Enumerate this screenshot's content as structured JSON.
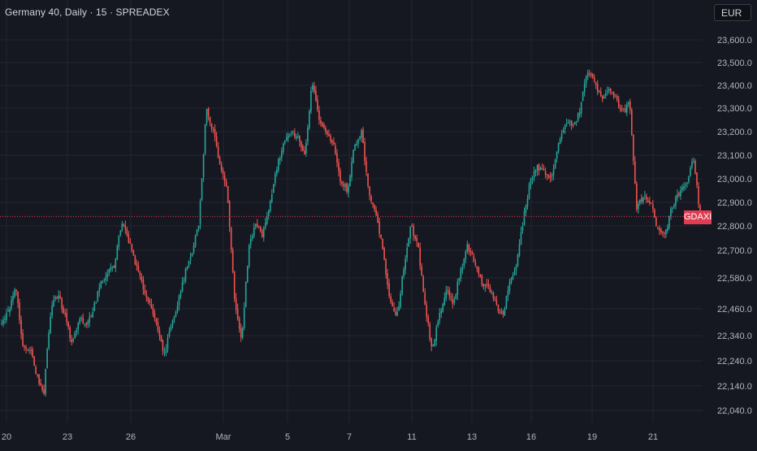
{
  "header": {
    "title": "Germany 40, Daily · 15 · SPREADEX",
    "currency": "EUR"
  },
  "price_label": "GDAXI",
  "colors": {
    "background": "#151821",
    "grid": "#232631",
    "up": "#26a69a",
    "down": "#ef5350",
    "price_line": "#e03d53",
    "axis_text": "#b2b5be"
  },
  "chart_data": {
    "type": "candlestick",
    "title": "Germany 40, Daily · 15 · SPREADEX",
    "xlabel": "",
    "ylabel": "",
    "current_price_label": "GDAXI",
    "current_price": 22840,
    "ylim": [
      22000,
      23650
    ],
    "y_ticks": [
      {
        "value": 23600,
        "label": "23,600.0"
      },
      {
        "value": 23500,
        "label": "23,500.0"
      },
      {
        "value": 23400,
        "label": "23,400.0"
      },
      {
        "value": 23300,
        "label": "23,300.0"
      },
      {
        "value": 23200,
        "label": "23,200.0"
      },
      {
        "value": 23100,
        "label": "23,100.0"
      },
      {
        "value": 23000,
        "label": "23,000.0"
      },
      {
        "value": 22900,
        "label": "22,900.0"
      },
      {
        "value": 22800,
        "label": "22,800.0"
      },
      {
        "value": 22700,
        "label": "22,700.0"
      },
      {
        "value": 22580,
        "label": "22,580.0"
      },
      {
        "value": 22460,
        "label": "22,460.0"
      },
      {
        "value": 22340,
        "label": "22,340.0"
      },
      {
        "value": 22240,
        "label": "22,240.0"
      },
      {
        "value": 22140,
        "label": "22,140.0"
      },
      {
        "value": 22040,
        "label": "22,040.0"
      }
    ],
    "x_ticks": [
      "20",
      "23",
      "26",
      "Mar",
      "5",
      "7",
      "11",
      "13",
      "16",
      "19",
      "21"
    ],
    "trend_path": [
      22390,
      22450,
      22560,
      22300,
      22290,
      22180,
      22120,
      22460,
      22520,
      22430,
      22300,
      22420,
      22380,
      22460,
      22560,
      22600,
      22640,
      22820,
      22740,
      22640,
      22550,
      22480,
      22380,
      22260,
      22380,
      22490,
      22600,
      22700,
      22820,
      23300,
      23200,
      23050,
      22940,
      22500,
      22320,
      22700,
      22820,
      22760,
      22900,
      23050,
      23150,
      23200,
      23180,
      23100,
      23420,
      23250,
      23200,
      23150,
      23000,
      22950,
      23140,
      23200,
      22950,
      22850,
      22700,
      22500,
      22420,
      22620,
      22800,
      22720,
      22470,
      22280,
      22420,
      22540,
      22480,
      22600,
      22720,
      22650,
      22560,
      22540,
      22480,
      22430,
      22560,
      22640,
      22840,
      23000,
      23050,
      23020,
      23010,
      23160,
      23250,
      23220,
      23300,
      23460,
      23420,
      23340,
      23380,
      23340,
      23280,
      23320,
      22880,
      22930,
      22900,
      22780,
      22760,
      22880,
      22940,
      22970,
      23090,
      22850
    ]
  }
}
